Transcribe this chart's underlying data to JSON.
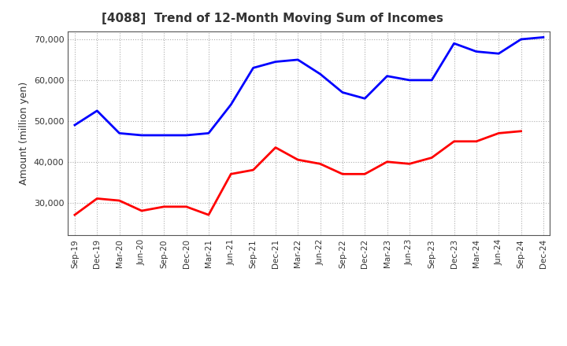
{
  "title": "[4088]  Trend of 12-Month Moving Sum of Incomes",
  "ylabel": "Amount (million yen)",
  "x_labels": [
    "Sep-19",
    "Dec-19",
    "Mar-20",
    "Jun-20",
    "Sep-20",
    "Dec-20",
    "Mar-21",
    "Jun-21",
    "Sep-21",
    "Dec-21",
    "Mar-22",
    "Jun-22",
    "Sep-22",
    "Dec-22",
    "Mar-23",
    "Jun-23",
    "Sep-23",
    "Dec-23",
    "Mar-24",
    "Jun-24",
    "Sep-24",
    "Dec-24"
  ],
  "ordinary_income": [
    49000,
    52500,
    47000,
    46500,
    46500,
    46500,
    47000,
    54000,
    63000,
    64500,
    65000,
    61500,
    57000,
    55500,
    61000,
    60000,
    60000,
    69000,
    67000,
    66500,
    70000,
    70500
  ],
  "net_income": [
    27000,
    31000,
    30500,
    28000,
    29000,
    29000,
    27000,
    37000,
    38000,
    43500,
    40500,
    39500,
    37000,
    37000,
    40000,
    39500,
    41000,
    45000,
    45000,
    47000,
    47500,
    null
  ],
  "ordinary_color": "#0000ff",
  "net_color": "#ff0000",
  "ylim_min": 22000,
  "ylim_max": 72000,
  "yticks": [
    30000,
    40000,
    50000,
    60000,
    70000
  ],
  "bg_color": "#ffffff",
  "plot_bg_color": "#ffffff",
  "grid_color": "#999999",
  "title_color": "#333333"
}
